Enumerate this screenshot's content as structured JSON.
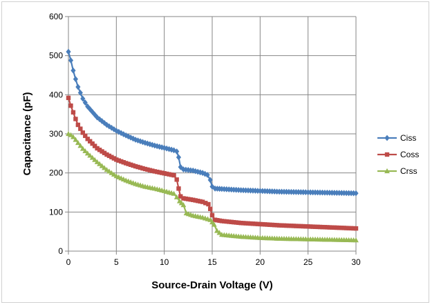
{
  "chart_data": {
    "type": "line",
    "title": "",
    "xlabel": "Source-Drain Voltage (V)",
    "ylabel": "Capacitance (pF)",
    "xlim": [
      0,
      30
    ],
    "ylim": [
      0,
      600
    ],
    "xticks": [
      "0",
      "5",
      "10",
      "15",
      "20",
      "25",
      "30"
    ],
    "yticks": [
      "0",
      "100",
      "200",
      "300",
      "400",
      "500",
      "600"
    ],
    "grid": "vertical and horizontal major gridlines",
    "legend_position": "right",
    "series": [
      {
        "name": "Ciss",
        "color": "#4a7ebb",
        "marker": "diamond",
        "points": [
          [
            0,
            510
          ],
          [
            0.25,
            488
          ],
          [
            0.5,
            462
          ],
          [
            0.75,
            440
          ],
          [
            1,
            420
          ],
          [
            1.5,
            390
          ],
          [
            2,
            370
          ],
          [
            3,
            342
          ],
          [
            4,
            323
          ],
          [
            5,
            308
          ],
          [
            6,
            296
          ],
          [
            7,
            285
          ],
          [
            8,
            277
          ],
          [
            9,
            270
          ],
          [
            10,
            264
          ],
          [
            11,
            258
          ],
          [
            11.3,
            255
          ],
          [
            11.5,
            240
          ],
          [
            11.7,
            215
          ],
          [
            12,
            209
          ],
          [
            13,
            206
          ],
          [
            14,
            200
          ],
          [
            14.5,
            195
          ],
          [
            14.8,
            182
          ],
          [
            15,
            165
          ],
          [
            15.3,
            160
          ],
          [
            16,
            159
          ],
          [
            18,
            156
          ],
          [
            20,
            154
          ],
          [
            22,
            152
          ],
          [
            24,
            151
          ],
          [
            26,
            150
          ],
          [
            28,
            149
          ],
          [
            30,
            148
          ]
        ]
      },
      {
        "name": "Coss",
        "color": "#be4b48",
        "marker": "square",
        "points": [
          [
            0,
            392
          ],
          [
            0.25,
            372
          ],
          [
            0.5,
            355
          ],
          [
            0.75,
            338
          ],
          [
            1,
            323
          ],
          [
            1.5,
            303
          ],
          [
            2,
            287
          ],
          [
            3,
            263
          ],
          [
            4,
            247
          ],
          [
            5,
            234
          ],
          [
            6,
            225
          ],
          [
            7,
            217
          ],
          [
            8,
            210
          ],
          [
            9,
            204
          ],
          [
            10,
            199
          ],
          [
            11,
            194
          ],
          [
            11.3,
            183
          ],
          [
            11.5,
            160
          ],
          [
            11.7,
            140
          ],
          [
            12,
            135
          ],
          [
            13,
            131
          ],
          [
            14,
            126
          ],
          [
            14.6,
            120
          ],
          [
            14.8,
            108
          ],
          [
            15,
            92
          ],
          [
            15.3,
            80
          ],
          [
            16,
            77
          ],
          [
            18,
            72
          ],
          [
            20,
            69
          ],
          [
            22,
            66
          ],
          [
            24,
            64
          ],
          [
            26,
            62
          ],
          [
            28,
            60
          ],
          [
            30,
            58
          ]
        ]
      },
      {
        "name": "Crss",
        "color": "#98b954",
        "marker": "triangle",
        "points": [
          [
            0,
            300
          ],
          [
            0.25,
            297
          ],
          [
            0.5,
            292
          ],
          [
            0.75,
            285
          ],
          [
            1,
            277
          ],
          [
            1.5,
            262
          ],
          [
            2,
            250
          ],
          [
            3,
            228
          ],
          [
            4,
            208
          ],
          [
            5,
            192
          ],
          [
            6,
            181
          ],
          [
            7,
            172
          ],
          [
            8,
            165
          ],
          [
            9,
            160
          ],
          [
            10,
            154
          ],
          [
            11,
            147
          ],
          [
            11.3,
            138
          ],
          [
            11.6,
            128
          ],
          [
            12,
            118
          ],
          [
            12.3,
            97
          ],
          [
            13,
            91
          ],
          [
            14,
            86
          ],
          [
            14.8,
            80
          ],
          [
            15.2,
            68
          ],
          [
            15.5,
            52
          ],
          [
            16,
            42
          ],
          [
            18,
            37
          ],
          [
            20,
            34
          ],
          [
            22,
            32
          ],
          [
            24,
            31
          ],
          [
            26,
            30
          ],
          [
            28,
            29
          ],
          [
            30,
            28
          ]
        ]
      }
    ]
  }
}
